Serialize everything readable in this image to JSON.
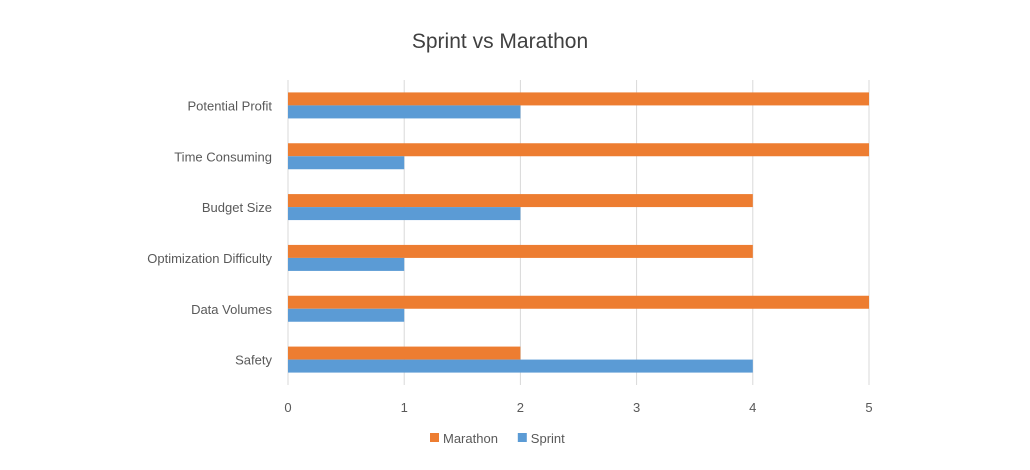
{
  "chart_data": {
    "type": "bar",
    "orientation": "horizontal",
    "title": "Sprint vs Marathon",
    "xlabel": "",
    "ylabel": "",
    "categories": [
      "Potential Profit",
      "Time Consuming",
      "Budget Size",
      "Optimization Difficulty",
      "Data Volumes",
      "Safety"
    ],
    "series": [
      {
        "name": "Marathon",
        "color": "#ED7D31",
        "values": [
          5,
          5,
          4,
          4,
          5,
          2
        ]
      },
      {
        "name": "Sprint",
        "color": "#5B9BD5",
        "values": [
          2,
          1,
          2,
          1,
          1,
          4
        ]
      }
    ],
    "xlim": [
      0,
      5
    ],
    "xticks": [
      "0",
      "1",
      "2",
      "3",
      "4",
      "5"
    ],
    "grid": "vertical",
    "legend": "bottom"
  }
}
